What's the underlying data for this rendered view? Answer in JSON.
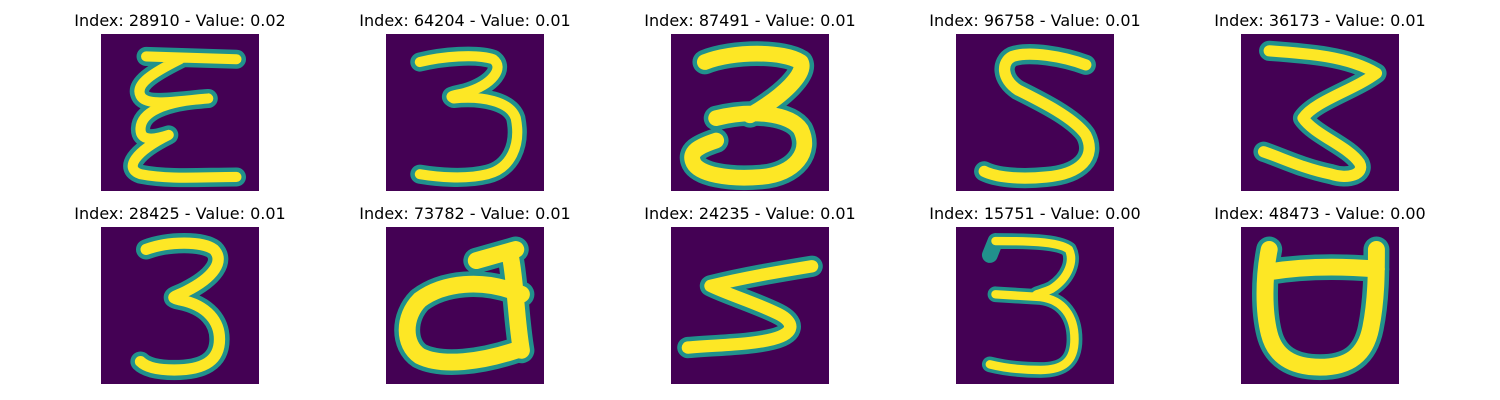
{
  "chart_data": {
    "type": "image-grid",
    "colormap": "viridis",
    "colors": {
      "background": "#440154",
      "edge": "#21918c",
      "stroke": "#fde725",
      "mid": "#5ec962"
    },
    "panels": [
      {
        "title": "Index: 28910 - Value: 0.02",
        "index": 28910,
        "value": 0.02,
        "glyph": "E-like"
      },
      {
        "title": "Index: 64204 - Value: 0.01",
        "index": 64204,
        "value": 0.01,
        "glyph": "3"
      },
      {
        "title": "Index: 87491 - Value: 0.01",
        "index": 87491,
        "value": 0.01,
        "glyph": "3"
      },
      {
        "title": "Index: 96758 - Value: 0.01",
        "index": 96758,
        "value": 0.01,
        "glyph": "5"
      },
      {
        "title": "Index: 36173 - Value: 0.01",
        "index": 36173,
        "value": 0.01,
        "glyph": "3"
      },
      {
        "title": "Index: 28425 - Value: 0.01",
        "index": 28425,
        "value": 0.01,
        "glyph": "3"
      },
      {
        "title": "Index: 73782 - Value: 0.01",
        "index": 73782,
        "value": 0.01,
        "glyph": "d"
      },
      {
        "title": "Index: 24235 - Value: 0.01",
        "index": 24235,
        "value": 0.01,
        "glyph": "3"
      },
      {
        "title": "Index: 15751 - Value: 0.00",
        "index": 15751,
        "value": 0.0,
        "glyph": "3"
      },
      {
        "title": "Index: 48473 - Value: 0.00",
        "index": 48473,
        "value": 0.0,
        "glyph": "d"
      }
    ]
  }
}
